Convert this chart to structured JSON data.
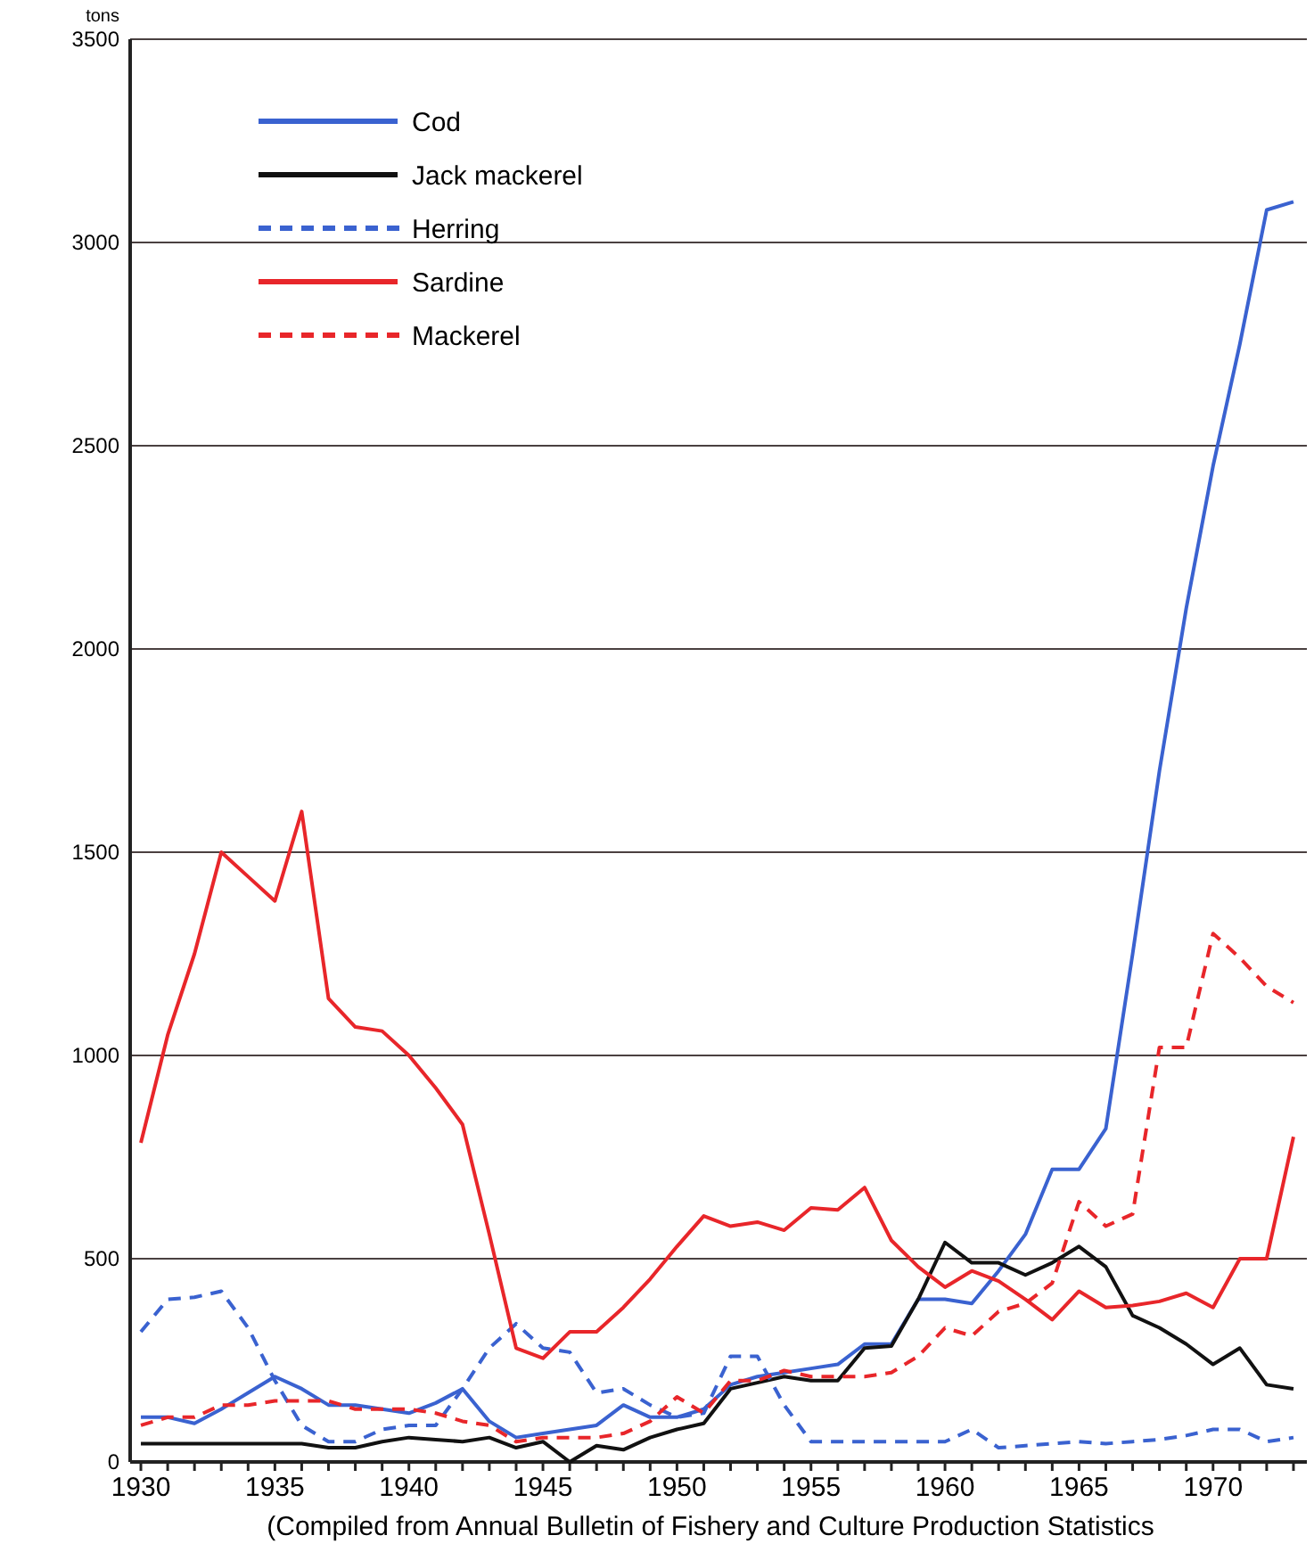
{
  "chart_data": {
    "type": "line",
    "ylabel": "tons",
    "annotations": [
      "(Compiled from Annual Bulletin of  Fishery and Culture Production Statistics"
    ],
    "x": [
      1930,
      1931,
      1932,
      1933,
      1934,
      1935,
      1936,
      1937,
      1938,
      1939,
      1940,
      1941,
      1942,
      1943,
      1944,
      1945,
      1946,
      1947,
      1948,
      1949,
      1950,
      1951,
      1952,
      1953,
      1954,
      1955,
      1956,
      1957,
      1958,
      1959,
      1960,
      1961,
      1962,
      1963,
      1964,
      1965,
      1966,
      1967,
      1968,
      1969,
      1970,
      1971,
      1972,
      1973
    ],
    "xlim": [
      1929.6,
      1973.5
    ],
    "xticks": [
      1930,
      {
        "value": 1931,
        "label": null
      },
      {
        "value": 1932,
        "label": null
      },
      {
        "value": 1933,
        "label": null
      },
      {
        "value": 1934,
        "label": null
      },
      1935,
      {
        "value": 1936,
        "label": null
      },
      {
        "value": 1937,
        "label": null
      },
      {
        "value": 1938,
        "label": null
      },
      {
        "value": 1939,
        "label": null
      },
      1940,
      {
        "value": 1941,
        "label": null
      },
      {
        "value": 1942,
        "label": null
      },
      {
        "value": 1943,
        "label": null
      },
      {
        "value": 1944,
        "label": null
      },
      1945,
      {
        "value": 1946,
        "label": null
      },
      {
        "value": 1947,
        "label": null
      },
      {
        "value": 1948,
        "label": null
      },
      {
        "value": 1949,
        "label": null
      },
      1950,
      {
        "value": 1951,
        "label": null
      },
      {
        "value": 1952,
        "label": null
      },
      {
        "value": 1953,
        "label": null
      },
      {
        "value": 1954,
        "label": null
      },
      1955,
      {
        "value": 1956,
        "label": null
      },
      {
        "value": 1957,
        "label": null
      },
      {
        "value": 1958,
        "label": null
      },
      {
        "value": 1959,
        "label": null
      },
      1960,
      {
        "value": 1961,
        "label": null
      },
      {
        "value": 1962,
        "label": null
      },
      {
        "value": 1963,
        "label": null
      },
      {
        "value": 1964,
        "label": null
      },
      1965,
      {
        "value": 1966,
        "label": null
      },
      {
        "value": 1967,
        "label": null
      },
      {
        "value": 1968,
        "label": null
      },
      {
        "value": 1969,
        "label": null
      },
      1970,
      {
        "value": 1971,
        "label": null
      },
      {
        "value": 1972,
        "label": null
      },
      {
        "value": 1973,
        "label": null
      }
    ],
    "ylim": [
      0,
      3500
    ],
    "yticks": [
      0,
      500,
      1000,
      1500,
      2000,
      2500,
      3000,
      3500
    ],
    "grid": "y",
    "legend": "top left",
    "marker": "none",
    "series": [
      {
        "name": "Cod",
        "color": "#3a62d0",
        "line_style": "solid",
        "values": [
          110,
          110,
          95,
          130,
          170,
          210,
          180,
          140,
          140,
          130,
          120,
          145,
          180,
          100,
          60,
          70,
          80,
          90,
          140,
          110,
          110,
          130,
          190,
          210,
          220,
          230,
          240,
          290,
          290,
          400,
          400,
          390,
          470,
          560,
          720,
          720,
          820,
          1250,
          1700,
          2100,
          2450,
          2750,
          3080,
          3100
        ]
      },
      {
        "name": "Jack mackerel",
        "color": "#111111",
        "line_style": "solid",
        "values": [
          45,
          45,
          45,
          45,
          45,
          45,
          45,
          35,
          35,
          50,
          60,
          55,
          50,
          60,
          35,
          50,
          0,
          40,
          30,
          60,
          80,
          95,
          180,
          195,
          210,
          200,
          200,
          280,
          285,
          400,
          540,
          490,
          490,
          460,
          490,
          530,
          480,
          360,
          330,
          290,
          240,
          280,
          190,
          180
        ]
      },
      {
        "name": "Herring",
        "color": "#3a62d0",
        "line_style": "dashed",
        "values": [
          320,
          400,
          405,
          420,
          330,
          200,
          90,
          50,
          50,
          80,
          90,
          90,
          180,
          280,
          340,
          280,
          270,
          170,
          180,
          140,
          110,
          120,
          260,
          260,
          140,
          50,
          50,
          50,
          50,
          50,
          50,
          80,
          35,
          40,
          45,
          50,
          45,
          50,
          55,
          65,
          80,
          80,
          50,
          60
        ]
      },
      {
        "name": "Sardine",
        "color": "#e8262a",
        "line_style": "solid",
        "values": [
          785,
          1050,
          1250,
          1500,
          1440,
          1380,
          1600,
          1140,
          1070,
          1060,
          1000,
          920,
          830,
          560,
          280,
          255,
          320,
          320,
          380,
          450,
          530,
          605,
          580,
          590,
          570,
          625,
          620,
          675,
          545,
          480,
          430,
          470,
          445,
          400,
          350,
          420,
          380,
          385,
          395,
          415,
          380,
          500,
          500,
          800
        ]
      },
      {
        "name": "Mackerel",
        "color": "#e8262a",
        "line_style": "dashed",
        "values": [
          90,
          110,
          110,
          140,
          140,
          150,
          150,
          150,
          130,
          130,
          130,
          120,
          100,
          90,
          50,
          60,
          60,
          60,
          70,
          100,
          160,
          120,
          200,
          200,
          225,
          210,
          210,
          210,
          220,
          260,
          330,
          310,
          370,
          390,
          440,
          640,
          580,
          610,
          1020,
          1020,
          1300,
          1240,
          1170,
          1130
        ]
      }
    ]
  }
}
